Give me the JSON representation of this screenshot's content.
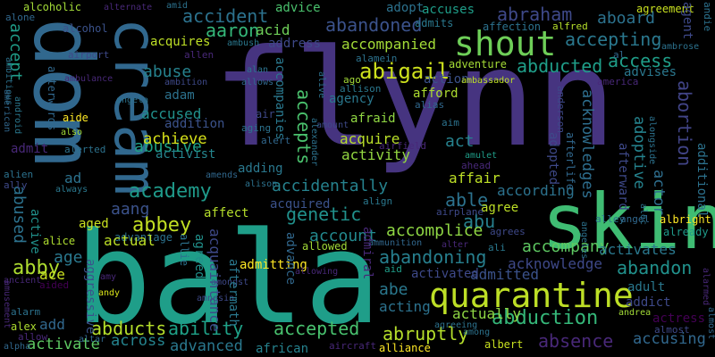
{
  "words": [
    {
      "text": "flynn",
      "color": "#463480",
      "orient": "h"
    },
    {
      "text": "bala",
      "color": "#1f9e89",
      "orient": "h"
    },
    {
      "text": "dom",
      "color": "#31688e",
      "orient": "v"
    },
    {
      "text": "skin",
      "color": "#3fbc73",
      "orient": "h"
    },
    {
      "text": "cream",
      "color": "#31688e",
      "orient": "v"
    },
    {
      "text": "quarantine",
      "color": "#bddf26",
      "orient": "h"
    },
    {
      "text": "shout",
      "color": "#6ece58",
      "orient": "h"
    },
    {
      "text": "abigail",
      "color": "#cde11d",
      "orient": "h"
    },
    {
      "text": "accident",
      "color": "#2c728e",
      "orient": "h"
    },
    {
      "text": "aaron",
      "color": "#35b779",
      "orient": "h"
    },
    {
      "text": "abandoned",
      "color": "#3b528b",
      "orient": "h"
    },
    {
      "text": "abduction",
      "color": "#35b779",
      "orient": "h"
    },
    {
      "text": "abraham",
      "color": "#3e4989",
      "orient": "h"
    },
    {
      "text": "abducts",
      "color": "#b5de2b",
      "orient": "h"
    },
    {
      "text": "ability",
      "color": "#1fa187",
      "orient": "h"
    },
    {
      "text": "accepted",
      "color": "#48c16e",
      "orient": "h"
    },
    {
      "text": "abruptly",
      "color": "#b5de2b",
      "orient": "h"
    },
    {
      "text": "absence",
      "color": "#482878",
      "orient": "h"
    },
    {
      "text": "accusing",
      "color": "#31688e",
      "orient": "h"
    },
    {
      "text": "abandoning",
      "color": "#277f8e",
      "orient": "h"
    },
    {
      "text": "abandon",
      "color": "#21918c",
      "orient": "h"
    },
    {
      "text": "academy",
      "color": "#1f9a8a",
      "orient": "h"
    },
    {
      "text": "accidentally",
      "color": "#26828e",
      "orient": "h"
    },
    {
      "text": "abbey",
      "color": "#c2df23",
      "orient": "h"
    },
    {
      "text": "aang",
      "color": "#3b528b",
      "orient": "h"
    },
    {
      "text": "abducted",
      "color": "#1f9e89",
      "orient": "h"
    },
    {
      "text": "accepting",
      "color": "#2a788e",
      "orient": "h"
    },
    {
      "text": "access",
      "color": "#1f9e89",
      "orient": "h"
    },
    {
      "text": "abuse",
      "color": "#26828e",
      "orient": "h"
    },
    {
      "text": "abusive",
      "color": "#1fa187",
      "orient": "h"
    },
    {
      "text": "accused",
      "color": "#21918c",
      "orient": "h"
    },
    {
      "text": "accept",
      "color": "#1f9e89",
      "orient": "v"
    },
    {
      "text": "abused",
      "color": "#2c728e",
      "orient": "v"
    },
    {
      "text": "accepts",
      "color": "#4ac16d",
      "orient": "v"
    },
    {
      "text": "abby",
      "color": "#addc30",
      "orient": "h"
    },
    {
      "text": "age",
      "color": "#2a788e",
      "orient": "h"
    },
    {
      "text": "ace",
      "color": "#c8e020",
      "orient": "h"
    },
    {
      "text": "abe",
      "color": "#2a788e",
      "orient": "h"
    },
    {
      "text": "able",
      "color": "#2c728e",
      "orient": "h"
    },
    {
      "text": "abu",
      "color": "#277f8e",
      "orient": "h"
    },
    {
      "text": "genetic",
      "color": "#21918c",
      "orient": "h"
    },
    {
      "text": "account",
      "color": "#23898e",
      "orient": "h"
    },
    {
      "text": "accomplice",
      "color": "#8fd744",
      "orient": "h"
    },
    {
      "text": "accompany",
      "color": "#5ec962",
      "orient": "h"
    },
    {
      "text": "acknowledge",
      "color": "#3e4989",
      "orient": "h"
    },
    {
      "text": "activates",
      "color": "#2a788e",
      "orient": "h"
    },
    {
      "text": "admitted",
      "color": "#3b528b",
      "orient": "h"
    },
    {
      "text": "abortion",
      "color": "#414487",
      "orient": "v"
    },
    {
      "text": "acknowledges",
      "color": "#2e6e8e",
      "orient": "v"
    },
    {
      "text": "adoptive",
      "color": "#25838e",
      "orient": "v"
    },
    {
      "text": "actor",
      "color": "#2e6e8e",
      "orient": "v"
    },
    {
      "text": "aboard",
      "color": "#2c728e",
      "orient": "h"
    },
    {
      "text": "abandon",
      "color": "#21918c",
      "orient": "h"
    },
    {
      "text": "adult",
      "color": "#2a788e",
      "orient": "h"
    },
    {
      "text": "addict",
      "color": "#3e4989",
      "orient": "h"
    },
    {
      "text": "actress",
      "color": "#440154",
      "orient": "h"
    },
    {
      "text": "additional",
      "color": "#2c728e",
      "orient": "v"
    },
    {
      "text": "achieve",
      "color": "#d8e219",
      "orient": "h"
    },
    {
      "text": "activist",
      "color": "#25858e",
      "orient": "h"
    },
    {
      "text": "addition",
      "color": "#3b528b",
      "orient": "h"
    },
    {
      "text": "acquires",
      "color": "#bddf26",
      "orient": "h"
    },
    {
      "text": "adam",
      "color": "#2c728e",
      "orient": "h"
    },
    {
      "text": "acid",
      "color": "#6ece58",
      "orient": "h"
    },
    {
      "text": "address",
      "color": "#3e4989",
      "orient": "h"
    },
    {
      "text": "accompanied",
      "color": "#a2da37",
      "orient": "h"
    },
    {
      "text": "acquired",
      "color": "#3b528b",
      "orient": "h"
    },
    {
      "text": "acquire",
      "color": "#b8de29",
      "orient": "h"
    },
    {
      "text": "activity",
      "color": "#93d741",
      "orient": "h"
    },
    {
      "text": "adding",
      "color": "#2a788e",
      "orient": "h"
    },
    {
      "text": "accuses",
      "color": "#1f9e89",
      "orient": "h"
    },
    {
      "text": "admits",
      "color": "#2a788e",
      "orient": "h"
    },
    {
      "text": "affection",
      "color": "#2c728e",
      "orient": "h"
    },
    {
      "text": "adventure",
      "color": "#a5db36",
      "orient": "h"
    },
    {
      "text": "afford",
      "color": "#addc30",
      "orient": "h"
    },
    {
      "text": "action",
      "color": "#3b528b",
      "orient": "h"
    },
    {
      "text": "agency",
      "color": "#2a788e",
      "orient": "h"
    },
    {
      "text": "afraid",
      "color": "#90d743",
      "orient": "h"
    },
    {
      "text": "act",
      "color": "#26828e",
      "orient": "h"
    },
    {
      "text": "affair",
      "color": "#bddf26",
      "orient": "h"
    },
    {
      "text": "agree",
      "color": "#bddf26",
      "orient": "h"
    },
    {
      "text": "according",
      "color": "#2c728e",
      "orient": "h"
    },
    {
      "text": "acting",
      "color": "#2c728e",
      "orient": "h"
    },
    {
      "text": "actually",
      "color": "#8fd744",
      "orient": "h"
    },
    {
      "text": "activated",
      "color": "#3e4989",
      "orient": "h"
    },
    {
      "text": "advanced",
      "color": "#2a788e",
      "orient": "h"
    },
    {
      "text": "across",
      "color": "#25838e",
      "orient": "h"
    },
    {
      "text": "activate",
      "color": "#5ec962",
      "orient": "h"
    },
    {
      "text": "add",
      "color": "#31688e",
      "orient": "h"
    },
    {
      "text": "african",
      "color": "#26828e",
      "orient": "h"
    },
    {
      "text": "aged",
      "color": "#c8e020",
      "orient": "h"
    },
    {
      "text": "affect",
      "color": "#b5de2b",
      "orient": "h"
    },
    {
      "text": "advantage",
      "color": "#2c728e",
      "orient": "h"
    },
    {
      "text": "actual",
      "color": "#bddf26",
      "orient": "h"
    },
    {
      "text": "admitting",
      "color": "#fde725",
      "orient": "h"
    },
    {
      "text": "allowed",
      "color": "#a2da37",
      "orient": "h"
    },
    {
      "text": "admit",
      "color": "#482878",
      "orient": "h"
    },
    {
      "text": "alerted",
      "color": "#2c728e",
      "orient": "h"
    },
    {
      "text": "adopt",
      "color": "#2c728e",
      "orient": "h"
    },
    {
      "text": "advice",
      "color": "#4ac16d",
      "orient": "h"
    },
    {
      "text": "alcohol",
      "color": "#3b528b",
      "orient": "h"
    },
    {
      "text": "alcoholic",
      "color": "#a2da37",
      "orient": "h"
    },
    {
      "text": "alone",
      "color": "#31688e",
      "orient": "h"
    },
    {
      "text": "airport",
      "color": "#3e4989",
      "orient": "h"
    },
    {
      "text": "aide",
      "color": "#fde725",
      "orient": "h"
    },
    {
      "text": "aided",
      "color": "#440154",
      "orient": "h"
    },
    {
      "text": "alarm",
      "color": "#2c728e",
      "orient": "h"
    },
    {
      "text": "alex",
      "color": "#addc30",
      "orient": "h"
    },
    {
      "text": "allow",
      "color": "#482878",
      "orient": "h"
    },
    {
      "text": "alpha",
      "color": "#31688e",
      "orient": "h"
    },
    {
      "text": "alice",
      "color": "#addc30",
      "orient": "h"
    },
    {
      "text": "ago",
      "color": "#a2da37",
      "orient": "h"
    },
    {
      "text": "agreement",
      "color": "#c8e020",
      "orient": "h"
    },
    {
      "text": "alfred",
      "color": "#b5de2b",
      "orient": "h"
    },
    {
      "text": "albright",
      "color": "#fde725",
      "orient": "h"
    },
    {
      "text": "already",
      "color": "#1f9a8a",
      "orient": "h"
    },
    {
      "text": "almost",
      "color": "#3e4989",
      "orient": "h"
    },
    {
      "text": "albert",
      "color": "#c8e020",
      "orient": "h"
    },
    {
      "text": "alliance",
      "color": "#fde725",
      "orient": "h"
    },
    {
      "text": "aircraft",
      "color": "#482878",
      "orient": "h"
    },
    {
      "text": "andy",
      "color": "#d8e219",
      "orient": "h"
    },
    {
      "text": "amy",
      "color": "#482878",
      "orient": "h"
    },
    {
      "text": "andrea",
      "color": "#a2da37",
      "orient": "h"
    },
    {
      "text": "ambassador",
      "color": "#bddf26",
      "orient": "h"
    },
    {
      "text": "amulet",
      "color": "#1f9e89",
      "orient": "h"
    },
    {
      "text": "ahead",
      "color": "#482878",
      "orient": "h"
    },
    {
      "text": "airfield",
      "color": "#482878",
      "orient": "h"
    },
    {
      "text": "also",
      "color": "#a2da37",
      "orient": "h"
    },
    {
      "text": "alien",
      "color": "#2c728e",
      "orient": "h"
    },
    {
      "text": "ally",
      "color": "#3e4989",
      "orient": "h"
    },
    {
      "text": "allen",
      "color": "#482878",
      "orient": "h"
    },
    {
      "text": "al",
      "color": "#31688e",
      "orient": "h"
    },
    {
      "text": "amid",
      "color": "#2c728e",
      "orient": "h"
    },
    {
      "text": "alternate",
      "color": "#482878",
      "orient": "h"
    },
    {
      "text": "ambush",
      "color": "#2a788e",
      "orient": "h"
    },
    {
      "text": "ambition",
      "color": "#3e4989",
      "orient": "h"
    },
    {
      "text": "allows",
      "color": "#31688e",
      "orient": "h"
    },
    {
      "text": "alan",
      "color": "#2c728e",
      "orient": "h"
    },
    {
      "text": "allison",
      "color": "#2a788e",
      "orient": "h"
    },
    {
      "text": "alias",
      "color": "#31688e",
      "orient": "h"
    },
    {
      "text": "aim",
      "color": "#2c728e",
      "orient": "h"
    },
    {
      "text": "amount",
      "color": "#3e4989",
      "orient": "h"
    },
    {
      "text": "alert",
      "color": "#31688e",
      "orient": "h"
    },
    {
      "text": "aging",
      "color": "#2c728e",
      "orient": "h"
    },
    {
      "text": "air",
      "color": "#3e4989",
      "orient": "h"
    },
    {
      "text": "angela",
      "color": "#2c728e",
      "orient": "h"
    },
    {
      "text": "ambulance",
      "color": "#482878",
      "orient": "h"
    },
    {
      "text": "always",
      "color": "#2a788e",
      "orient": "h"
    },
    {
      "text": "ad",
      "color": "#2c728e",
      "orient": "h"
    },
    {
      "text": "amends",
      "color": "#31688e",
      "orient": "h"
    },
    {
      "text": "alison",
      "color": "#2c728e",
      "orient": "h"
    },
    {
      "text": "align",
      "color": "#2a788e",
      "orient": "h"
    },
    {
      "text": "airplane",
      "color": "#3e4989",
      "orient": "h"
    },
    {
      "text": "alley",
      "color": "#2c728e",
      "orient": "h"
    },
    {
      "text": "angel",
      "color": "#31688e",
      "orient": "h"
    },
    {
      "text": "ali",
      "color": "#2a788e",
      "orient": "h"
    },
    {
      "text": "agrees",
      "color": "#3e4989",
      "orient": "h"
    },
    {
      "text": "alter",
      "color": "#482878",
      "orient": "h"
    },
    {
      "text": "agreeing",
      "color": "#2c728e",
      "orient": "h"
    },
    {
      "text": "among",
      "color": "#2c728e",
      "orient": "h"
    },
    {
      "text": "aid",
      "color": "#1f9e89",
      "orient": "h"
    },
    {
      "text": "ammunition",
      "color": "#31688e",
      "orient": "h"
    },
    {
      "text": "allowing",
      "color": "#482878",
      "orient": "h"
    },
    {
      "text": "amongst",
      "color": "#3e4989",
      "orient": "h"
    },
    {
      "text": "altar",
      "color": "#31688e",
      "orient": "h"
    },
    {
      "text": "ancient",
      "color": "#482878",
      "orient": "h"
    },
    {
      "text": "amnesia",
      "color": "#3e4989",
      "orient": "h"
    },
    {
      "text": "alamein",
      "color": "#2c728e",
      "orient": "h"
    },
    {
      "text": "ambrose",
      "color": "#2c728e",
      "orient": "h"
    },
    {
      "text": "america",
      "color": "#482878",
      "orient": "h"
    },
    {
      "text": "anderson",
      "color": "#3e4989",
      "orient": "v"
    },
    {
      "text": "afterlife",
      "color": "#31688e",
      "orient": "v"
    },
    {
      "text": "alongside",
      "color": "#2c728e",
      "orient": "v"
    },
    {
      "text": "advises",
      "color": "#2a788e",
      "orient": "h"
    },
    {
      "text": "afterward",
      "color": "#3e4989",
      "orient": "v"
    },
    {
      "text": "adopted",
      "color": "#3e4989",
      "orient": "v"
    },
    {
      "text": "advance",
      "color": "#31688e",
      "orient": "v"
    },
    {
      "text": "admiral",
      "color": "#482878",
      "orient": "v"
    },
    {
      "text": "aftermath",
      "color": "#2a788e",
      "orient": "v"
    },
    {
      "text": "acquaintance",
      "color": "#3e4989",
      "orient": "v"
    },
    {
      "text": "agreed",
      "color": "#21918c",
      "orient": "v"
    },
    {
      "text": "allie",
      "color": "#2c728e",
      "orient": "v"
    },
    {
      "text": "aggressive",
      "color": "#3b528b",
      "orient": "v"
    },
    {
      "text": "active",
      "color": "#21918c",
      "orient": "v"
    },
    {
      "text": "accompanies",
      "color": "#2a788e",
      "orient": "v"
    },
    {
      "text": "alive",
      "color": "#2c728e",
      "orient": "v"
    },
    {
      "text": "alexander",
      "color": "#2c728e",
      "orient": "v"
    },
    {
      "text": "afterwards",
      "color": "#31688e",
      "orient": "v"
    },
    {
      "text": "ambitious",
      "color": "#2c728e",
      "orient": "v"
    },
    {
      "text": "american",
      "color": "#31688e",
      "orient": "v"
    },
    {
      "text": "android",
      "color": "#2a788e",
      "orient": "v"
    },
    {
      "text": "amusement",
      "color": "#482878",
      "orient": "v"
    },
    {
      "text": "andie",
      "color": "#2c728e",
      "orient": "v"
    },
    {
      "text": "agent",
      "color": "#3e4989",
      "orient": "v"
    },
    {
      "text": "alec",
      "color": "#2c728e",
      "orient": "v"
    },
    {
      "text": "angeles",
      "color": "#2c728e",
      "orient": "v"
    },
    {
      "text": "alarmed",
      "color": "#482878",
      "orient": "v"
    },
    {
      "text": "almost",
      "color": "#31688e",
      "orient": "v"
    }
  ]
}
